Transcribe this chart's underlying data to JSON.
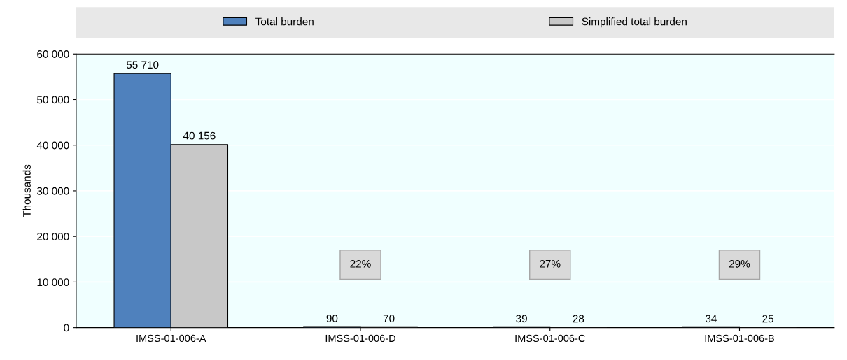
{
  "chart_data": {
    "type": "bar",
    "ylabel": "Thousands",
    "categories": [
      "IMSS-01-006-A",
      "IMSS-01-006-D",
      "IMSS-01-006-C",
      "IMSS-01-006-B"
    ],
    "series": [
      {
        "name": "Total burden",
        "color": "#4f81bd",
        "values": [
          55710,
          90,
          39,
          34
        ],
        "value_labels": [
          "55 710",
          "90",
          "39",
          "34"
        ]
      },
      {
        "name": "Simplified total burden",
        "color": "#c8c8c8",
        "values": [
          40156,
          70,
          28,
          25
        ],
        "value_labels": [
          "40 156",
          "70",
          "28",
          "25"
        ]
      }
    ],
    "ylim": [
      0,
      60000
    ],
    "yticks": [
      {
        "value": 0,
        "label": "0"
      },
      {
        "value": 10000,
        "label": "10 000"
      },
      {
        "value": 20000,
        "label": "20 000"
      },
      {
        "value": 30000,
        "label": "30 000"
      },
      {
        "value": 40000,
        "label": "40 000"
      },
      {
        "value": 50000,
        "label": "50 000"
      },
      {
        "value": 60000,
        "label": "60 000"
      }
    ],
    "annotations": [
      "22%",
      "27%",
      "29%"
    ],
    "grid": "y",
    "legend": "top"
  }
}
